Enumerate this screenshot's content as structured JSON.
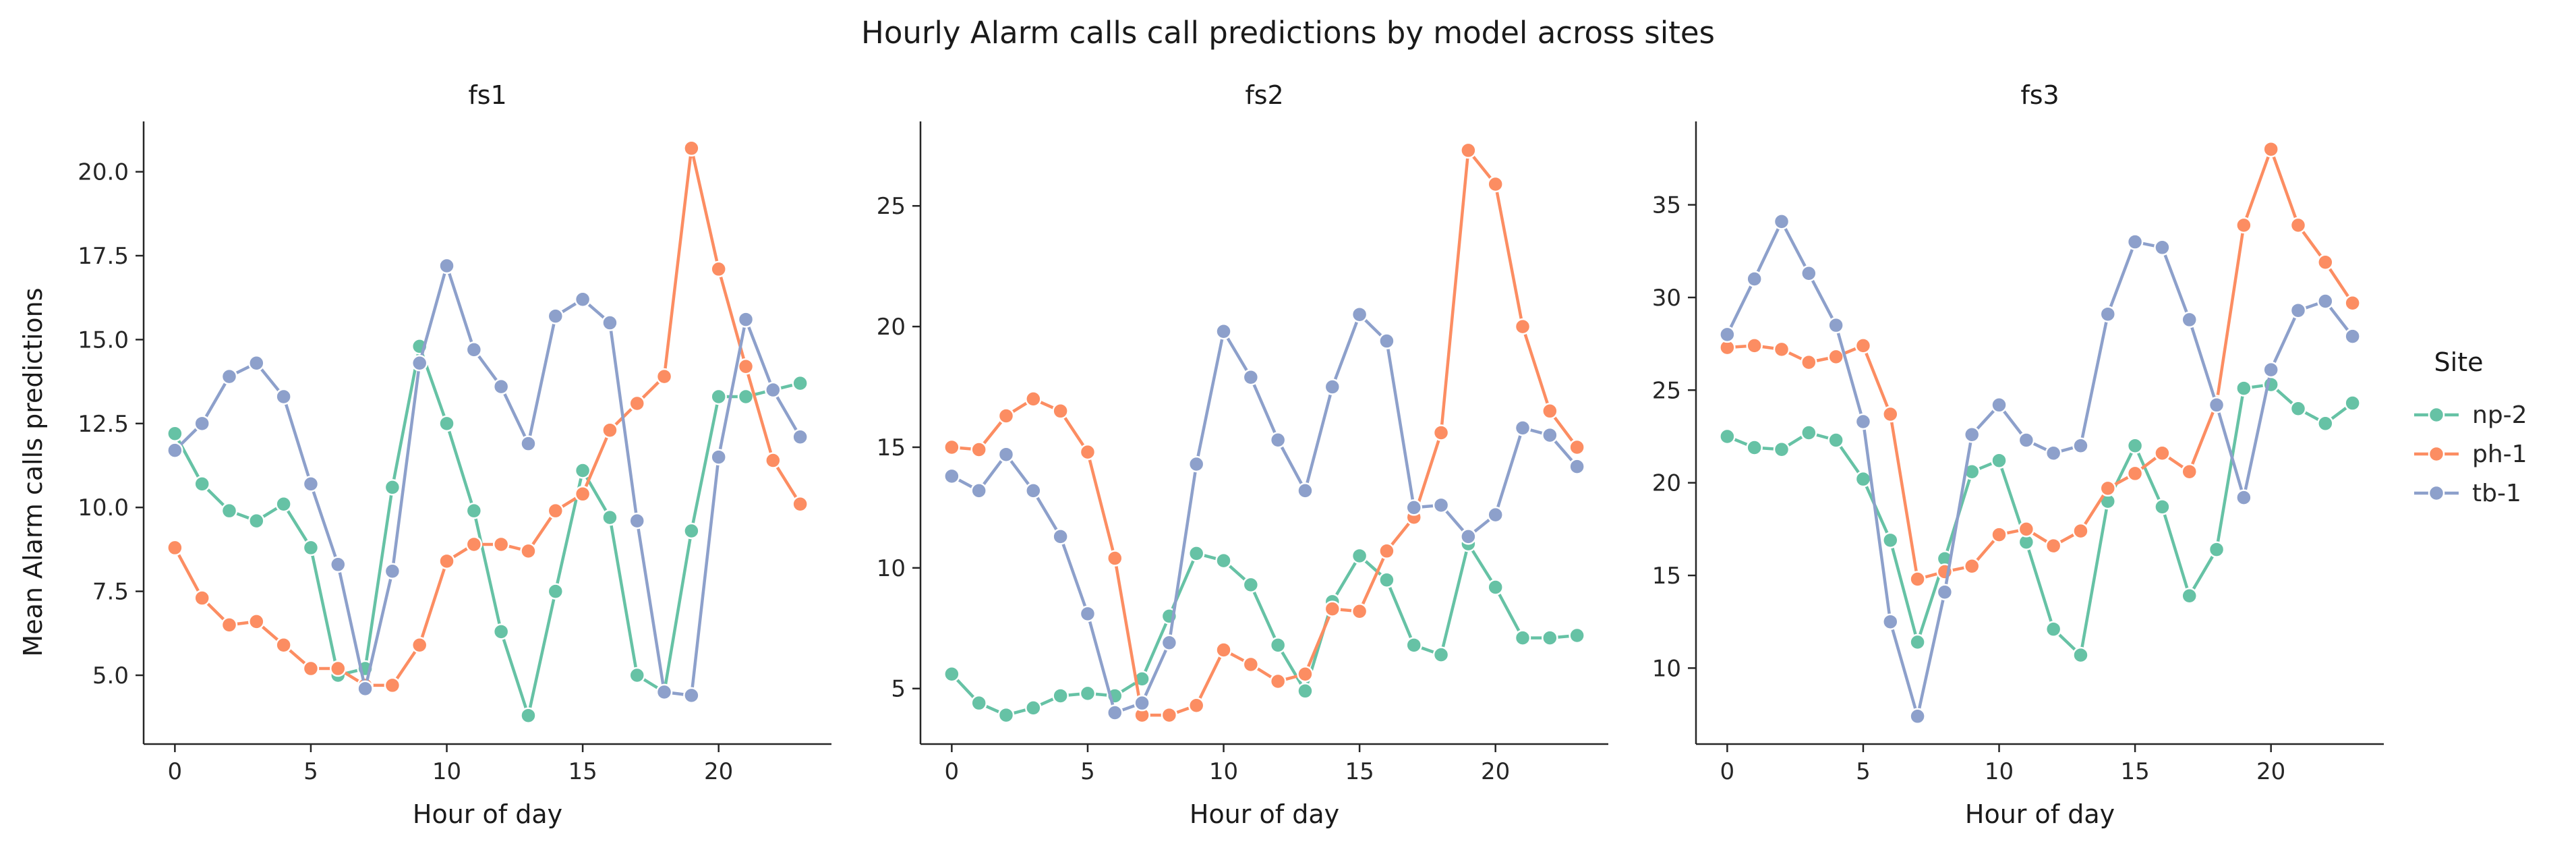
{
  "title": "Hourly Alarm calls call predictions by model across sites",
  "ylabel": "Mean Alarm calls predictions",
  "xlabel": "Hour of day",
  "legend": {
    "title": "Site",
    "entries": [
      {
        "name": "np-2",
        "color": "#66c2a5"
      },
      {
        "name": "ph-1",
        "color": "#fc8d62"
      },
      {
        "name": "tb-1",
        "color": "#8da0cb"
      }
    ]
  },
  "chart_data": [
    {
      "type": "line",
      "title": "fs1",
      "xlabel": "Hour of day",
      "ylabel": "Mean Alarm calls predictions",
      "x": [
        0,
        1,
        2,
        3,
        4,
        5,
        6,
        7,
        8,
        9,
        10,
        11,
        12,
        13,
        14,
        15,
        16,
        17,
        18,
        19,
        20,
        21,
        22,
        23
      ],
      "xticks": [
        0,
        5,
        10,
        15,
        20
      ],
      "xlim": [
        -1.15,
        24.15
      ],
      "ylim": [
        2.95,
        21.5
      ],
      "yticks": [
        5.0,
        7.5,
        10.0,
        12.5,
        15.0,
        17.5,
        20.0
      ],
      "ytick_labels": [
        "5.0",
        "7.5",
        "10.0",
        "12.5",
        "15.0",
        "17.5",
        "20.0"
      ],
      "series": [
        {
          "name": "np-2",
          "color": "#66c2a5",
          "values": [
            12.2,
            10.7,
            9.9,
            9.6,
            10.1,
            8.8,
            5.0,
            5.2,
            10.6,
            14.8,
            12.5,
            9.9,
            6.3,
            3.8,
            7.5,
            11.1,
            9.7,
            5.0,
            4.5,
            9.3,
            13.3,
            13.3,
            13.5,
            13.7
          ]
        },
        {
          "name": "ph-1",
          "color": "#fc8d62",
          "values": [
            8.8,
            7.3,
            6.5,
            6.6,
            5.9,
            5.2,
            5.2,
            4.7,
            4.7,
            5.9,
            8.4,
            8.9,
            8.9,
            8.7,
            9.9,
            10.4,
            12.3,
            13.1,
            13.9,
            20.7,
            17.1,
            14.2,
            11.4,
            10.1
          ]
        },
        {
          "name": "tb-1",
          "color": "#8da0cb",
          "values": [
            11.7,
            12.5,
            13.9,
            14.3,
            13.3,
            10.7,
            8.3,
            4.6,
            8.1,
            14.3,
            17.2,
            14.7,
            13.6,
            11.9,
            15.7,
            16.2,
            15.5,
            9.6,
            4.5,
            4.4,
            11.5,
            15.6,
            13.5,
            12.1
          ]
        }
      ]
    },
    {
      "type": "line",
      "title": "fs2",
      "xlabel": "Hour of day",
      "x": [
        0,
        1,
        2,
        3,
        4,
        5,
        6,
        7,
        8,
        9,
        10,
        11,
        12,
        13,
        14,
        15,
        16,
        17,
        18,
        19,
        20,
        21,
        22,
        23
      ],
      "xticks": [
        0,
        5,
        10,
        15,
        20
      ],
      "xlim": [
        -1.15,
        24.15
      ],
      "ylim": [
        2.7,
        28.5
      ],
      "yticks": [
        5,
        10,
        15,
        20,
        25
      ],
      "ytick_labels": [
        "5",
        "10",
        "15",
        "20",
        "25"
      ],
      "series": [
        {
          "name": "np-2",
          "color": "#66c2a5",
          "values": [
            5.6,
            4.4,
            3.9,
            4.2,
            4.7,
            4.8,
            4.7,
            5.4,
            8.0,
            10.6,
            10.3,
            9.3,
            6.8,
            4.9,
            8.6,
            10.5,
            9.5,
            6.8,
            6.4,
            11.0,
            9.2,
            7.1,
            7.1,
            7.2
          ]
        },
        {
          "name": "ph-1",
          "color": "#fc8d62",
          "values": [
            15.0,
            14.9,
            16.3,
            17.0,
            16.5,
            14.8,
            10.4,
            3.9,
            3.9,
            4.3,
            6.6,
            6.0,
            5.3,
            5.6,
            8.3,
            8.2,
            10.7,
            12.1,
            15.6,
            27.3,
            25.9,
            20.0,
            16.5,
            15.0
          ]
        },
        {
          "name": "tb-1",
          "color": "#8da0cb",
          "values": [
            13.8,
            13.2,
            14.7,
            13.2,
            11.3,
            8.1,
            4.0,
            4.4,
            6.9,
            14.3,
            19.8,
            17.9,
            15.3,
            13.2,
            17.5,
            20.5,
            19.4,
            12.5,
            12.6,
            11.3,
            12.2,
            15.8,
            15.5,
            14.2
          ]
        }
      ]
    },
    {
      "type": "line",
      "title": "fs3",
      "xlabel": "Hour of day",
      "x": [
        0,
        1,
        2,
        3,
        4,
        5,
        6,
        7,
        8,
        9,
        10,
        11,
        12,
        13,
        14,
        15,
        16,
        17,
        18,
        19,
        20,
        21,
        22,
        23
      ],
      "xticks": [
        0,
        5,
        10,
        15,
        20
      ],
      "xlim": [
        -1.15,
        24.15
      ],
      "ylim": [
        5.9,
        39.5
      ],
      "yticks": [
        10,
        15,
        20,
        25,
        30,
        35
      ],
      "ytick_labels": [
        "10",
        "15",
        "20",
        "25",
        "30",
        "35"
      ],
      "series": [
        {
          "name": "np-2",
          "color": "#66c2a5",
          "values": [
            22.5,
            21.9,
            21.8,
            22.7,
            22.3,
            20.2,
            16.9,
            11.4,
            15.9,
            20.6,
            21.2,
            16.8,
            12.1,
            10.7,
            19.0,
            22.0,
            18.7,
            13.9,
            16.4,
            25.1,
            25.3,
            24.0,
            23.2,
            24.3
          ]
        },
        {
          "name": "ph-1",
          "color": "#fc8d62",
          "values": [
            27.3,
            27.4,
            27.2,
            26.5,
            26.8,
            27.4,
            23.7,
            14.8,
            15.2,
            15.5,
            17.2,
            17.5,
            16.6,
            17.4,
            19.7,
            20.5,
            21.6,
            20.6,
            24.3,
            33.9,
            38.0,
            33.9,
            31.9,
            29.7
          ]
        },
        {
          "name": "tb-1",
          "color": "#8da0cb",
          "values": [
            28.0,
            31.0,
            34.1,
            31.3,
            28.5,
            23.3,
            12.5,
            7.4,
            14.1,
            22.6,
            24.2,
            22.3,
            21.6,
            22.0,
            29.1,
            33.0,
            32.7,
            28.8,
            24.2,
            19.2,
            26.1,
            29.3,
            29.8,
            27.9
          ]
        }
      ]
    }
  ]
}
